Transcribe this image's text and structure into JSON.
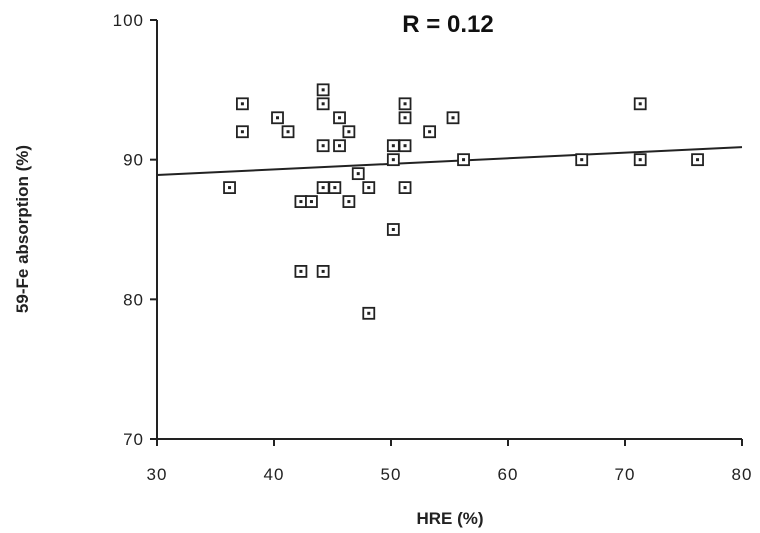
{
  "chart_data": {
    "type": "scatter",
    "title": "R = 0.12",
    "xlabel": "HRE (%)",
    "ylabel": "59-Fe absorption (%)",
    "xlim": [
      30,
      80
    ],
    "ylim": [
      70,
      100
    ],
    "xticks": [
      "30",
      "40",
      "50",
      "60",
      "70",
      "80"
    ],
    "yticks": [
      "70",
      "80",
      "90",
      "100"
    ],
    "grid": false,
    "colors": {
      "ink": "#222222",
      "background": "#ffffff"
    },
    "series": [
      {
        "points": [
          {
            "x": 36.2,
            "y": 88
          },
          {
            "x": 37.3,
            "y": 94
          },
          {
            "x": 37.3,
            "y": 92
          },
          {
            "x": 40.3,
            "y": 93
          },
          {
            "x": 41.2,
            "y": 92
          },
          {
            "x": 42.3,
            "y": 87
          },
          {
            "x": 43.2,
            "y": 87
          },
          {
            "x": 42.3,
            "y": 82
          },
          {
            "x": 44.2,
            "y": 82
          },
          {
            "x": 44.2,
            "y": 95
          },
          {
            "x": 44.2,
            "y": 94
          },
          {
            "x": 44.2,
            "y": 91
          },
          {
            "x": 44.2,
            "y": 88
          },
          {
            "x": 45.2,
            "y": 88
          },
          {
            "x": 45.6,
            "y": 93
          },
          {
            "x": 45.6,
            "y": 91
          },
          {
            "x": 46.4,
            "y": 92
          },
          {
            "x": 46.4,
            "y": 87
          },
          {
            "x": 47.2,
            "y": 89
          },
          {
            "x": 48.1,
            "y": 88
          },
          {
            "x": 48.1,
            "y": 79
          },
          {
            "x": 50.2,
            "y": 91
          },
          {
            "x": 50.2,
            "y": 90
          },
          {
            "x": 50.2,
            "y": 85
          },
          {
            "x": 51.2,
            "y": 94
          },
          {
            "x": 51.2,
            "y": 93
          },
          {
            "x": 51.2,
            "y": 91
          },
          {
            "x": 51.2,
            "y": 88
          },
          {
            "x": 53.3,
            "y": 92
          },
          {
            "x": 55.3,
            "y": 93
          },
          {
            "x": 56.2,
            "y": 90
          },
          {
            "x": 66.3,
            "y": 90
          },
          {
            "x": 71.3,
            "y": 94
          },
          {
            "x": 71.3,
            "y": 90
          },
          {
            "x": 76.2,
            "y": 90
          }
        ]
      }
    ],
    "regression_line": {
      "x": [
        30,
        80
      ],
      "y": [
        88.9,
        90.9
      ]
    }
  }
}
